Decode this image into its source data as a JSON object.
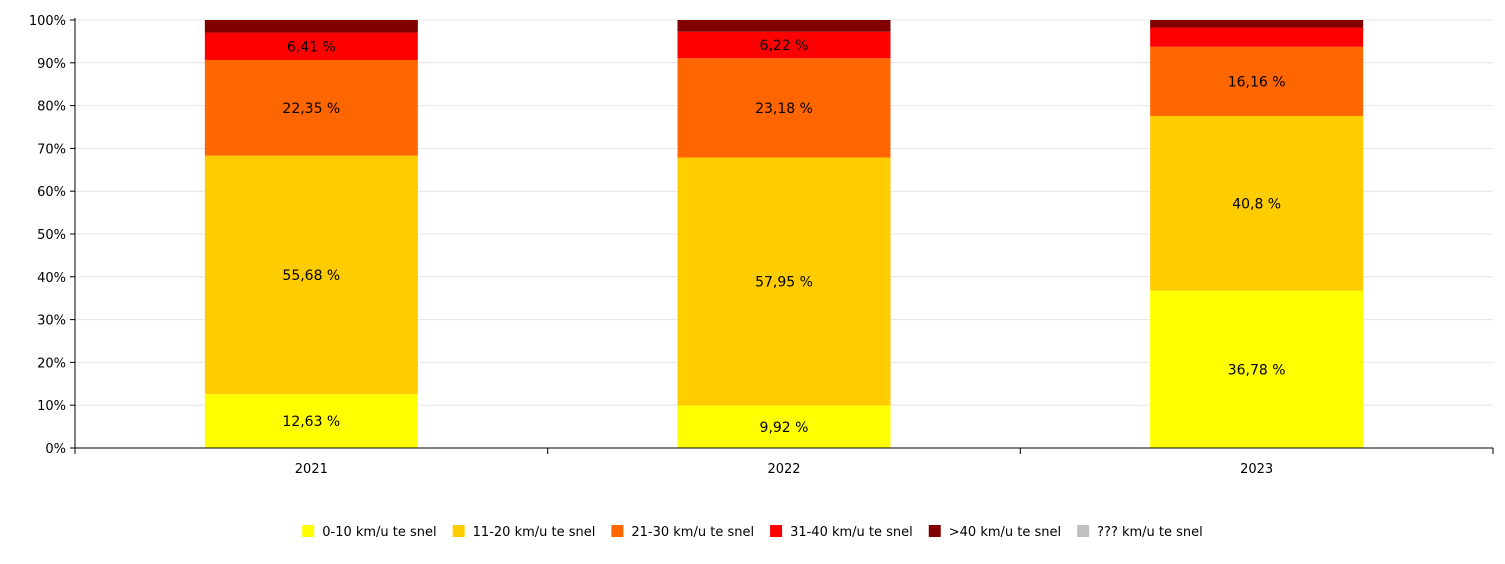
{
  "chart_data": {
    "type": "bar",
    "stacked": true,
    "percent": true,
    "title": "",
    "xlabel": "",
    "ylabel": "",
    "ylim": [
      0,
      100
    ],
    "y_ticks": [
      "0%",
      "10%",
      "20%",
      "30%",
      "40%",
      "50%",
      "60%",
      "70%",
      "80%",
      "90%",
      "100%"
    ],
    "grid": true,
    "legend_position": "bottom",
    "categories": [
      "2021",
      "2022",
      "2023"
    ],
    "series": [
      {
        "name": "0-10 km/u  te snel",
        "color": "#ffff00",
        "values": [
          12.63,
          9.92,
          36.78
        ],
        "labels": [
          "12,63 %",
          "9,92 %",
          "36,78 %"
        ]
      },
      {
        "name": "11-20 km/u  te snel",
        "color": "#ffcc00",
        "values": [
          55.68,
          57.95,
          40.8
        ],
        "labels": [
          "55,68 %",
          "57,95 %",
          "40,8 %"
        ]
      },
      {
        "name": "21-30 km/u  te snel",
        "color": "#ff6600",
        "values": [
          22.35,
          23.18,
          16.16
        ],
        "labels": [
          "22,35 %",
          "23,18 %",
          "16,16 %"
        ]
      },
      {
        "name": "31-40 km/u  te snel",
        "color": "#ff0000",
        "values": [
          6.41,
          6.22,
          4.5
        ],
        "labels": [
          "6,41 %",
          "6,22 %",
          ""
        ]
      },
      {
        "name": ">40 km/u  te snel",
        "color": "#800000",
        "values": [
          2.93,
          2.73,
          1.76
        ],
        "labels": [
          "",
          "",
          ""
        ]
      },
      {
        "name": "??? km/u  te snel",
        "color": "#c0c0c0",
        "values": [
          0,
          0,
          0
        ],
        "labels": [
          "",
          "",
          ""
        ]
      }
    ]
  }
}
